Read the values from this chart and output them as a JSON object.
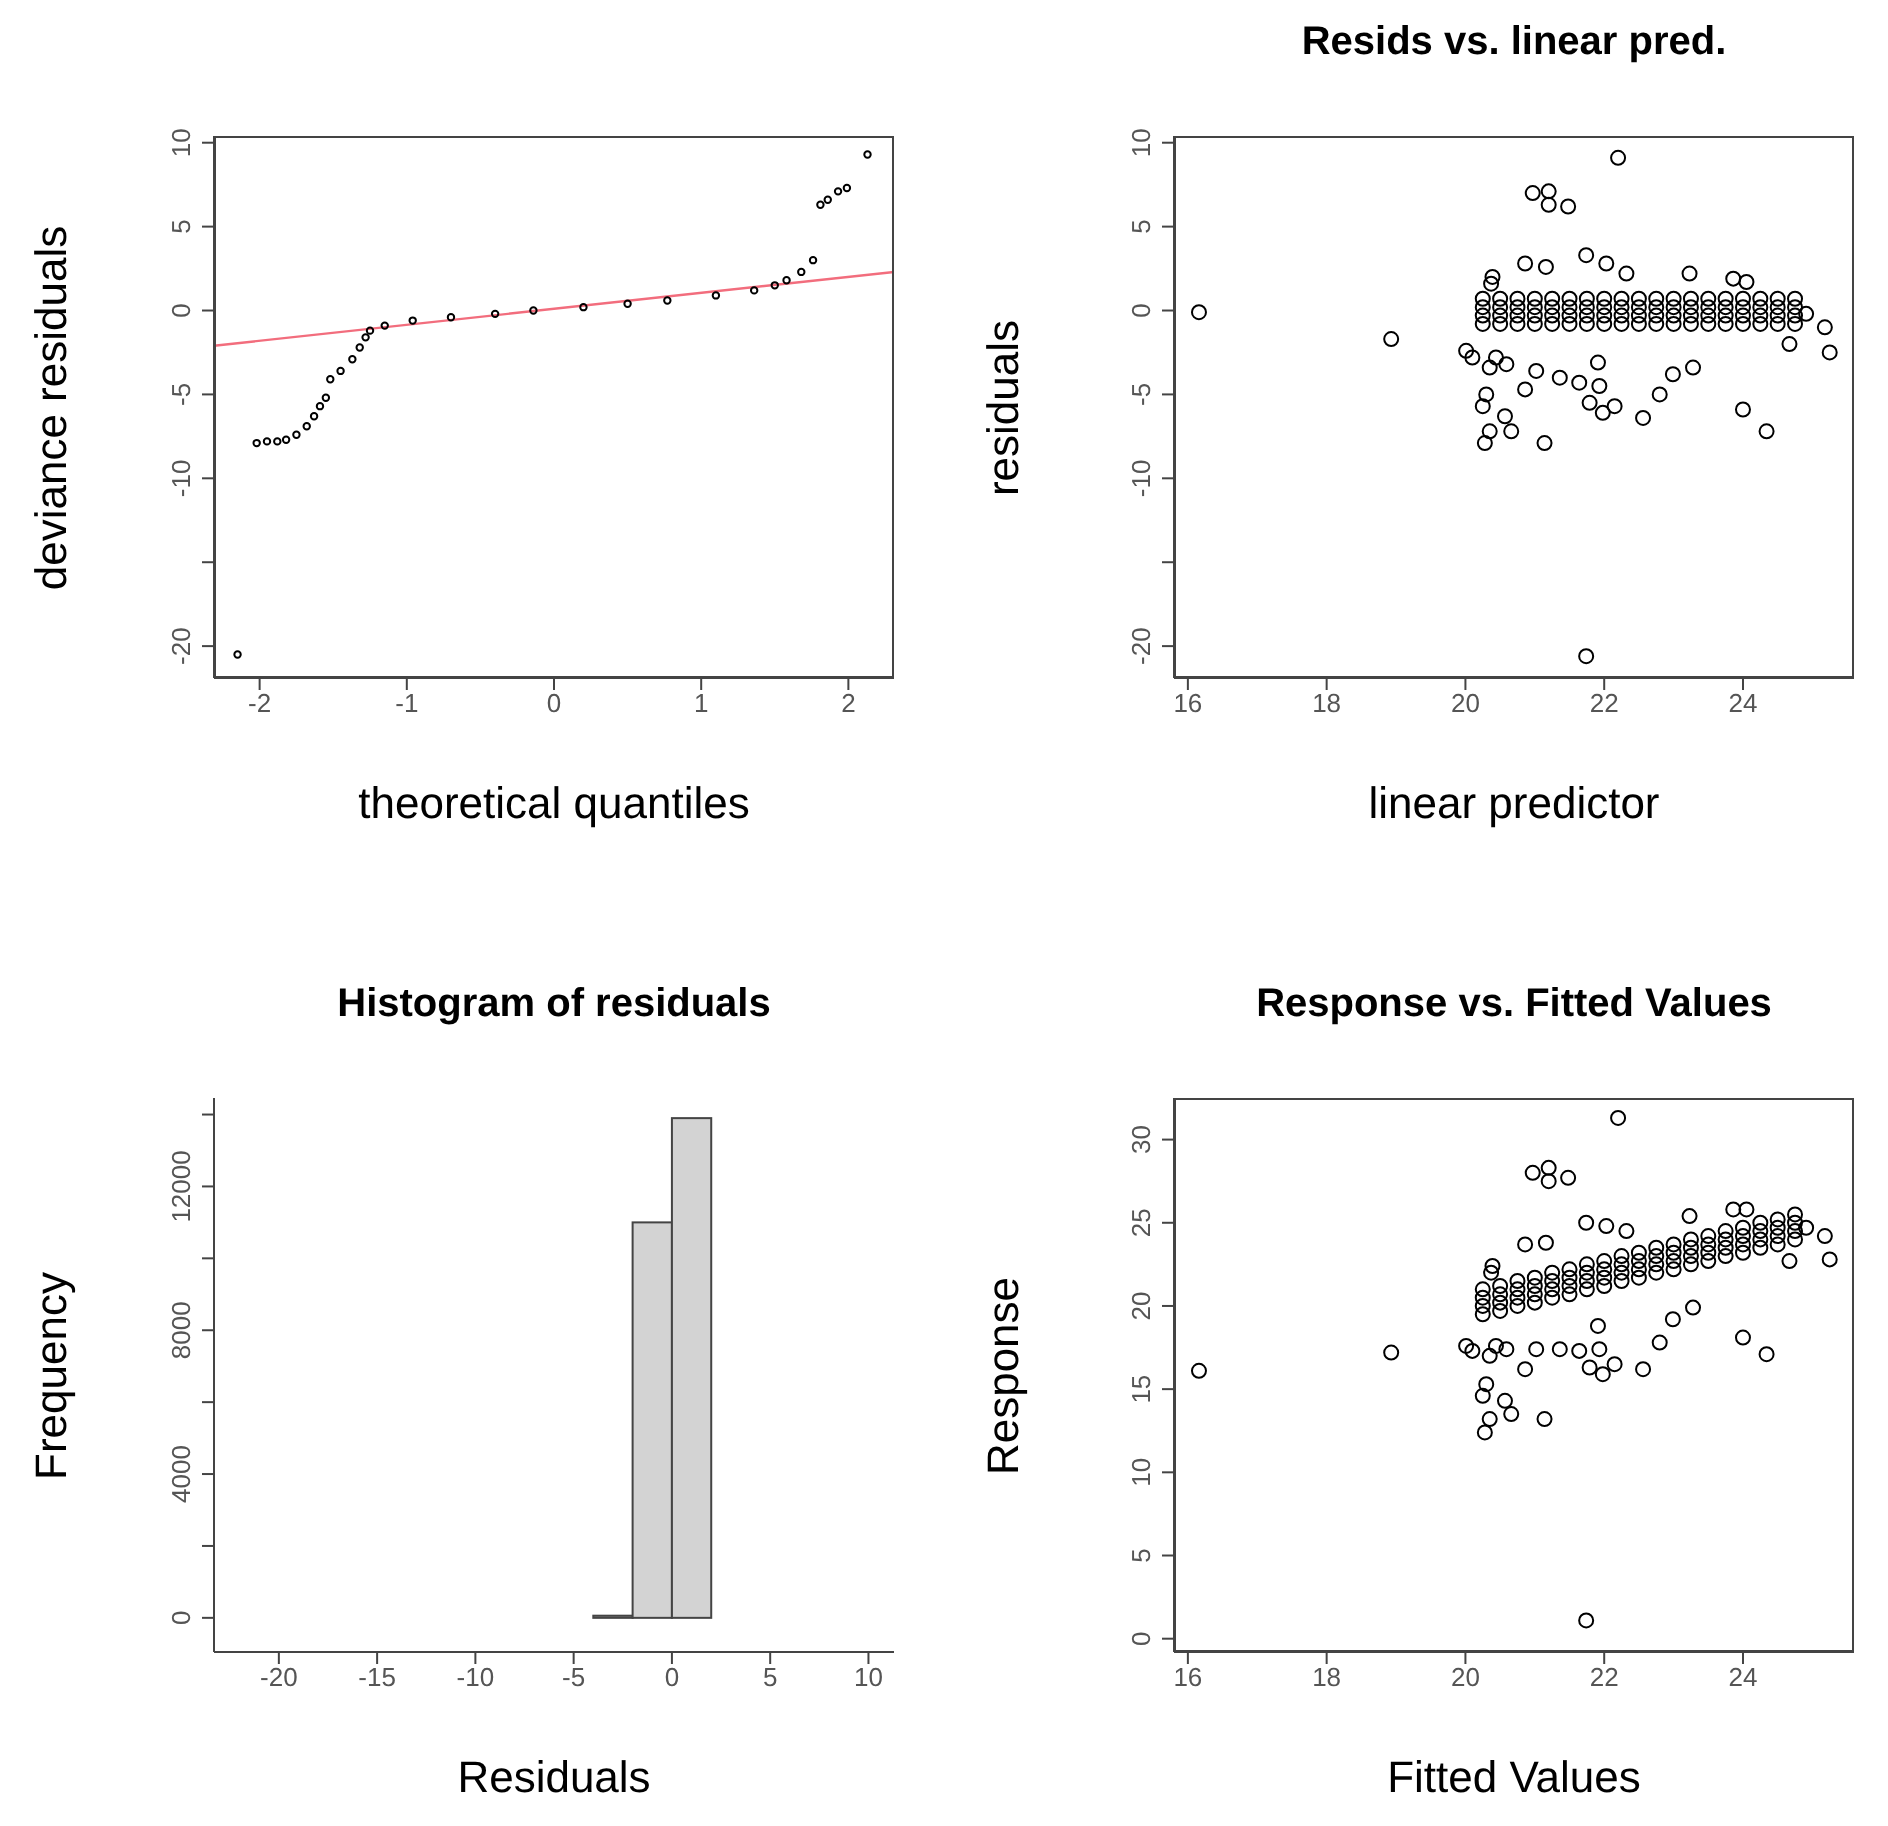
{
  "chart_data": [
    {
      "type": "scatter",
      "xlabel": "theoretical quantiles",
      "ylabel": "deviance residuals",
      "xlim": [
        -2.31,
        2.31
      ],
      "xticks": [
        -2,
        -1,
        0,
        1,
        2
      ],
      "ylim": [
        -21.9,
        10.4
      ],
      "yticks": [
        -20,
        {
          "value": -15,
          "label": null
        },
        -10,
        -5,
        0,
        5,
        10
      ],
      "series": [
        {
          "type": "scatter",
          "color": "#000000",
          "marker": "circle",
          "x": [
            -2.15,
            -2.02,
            -1.95,
            -1.88,
            -1.82,
            -1.75,
            -1.68,
            -1.63,
            -1.59,
            -1.55,
            -1.52,
            -1.45,
            -1.37,
            -1.32,
            -1.28,
            -1.25,
            -1.15,
            -0.96,
            -0.7,
            -0.4,
            -0.14,
            0.2,
            0.5,
            0.77,
            1.1,
            1.36,
            1.5,
            1.58,
            1.68,
            1.76,
            1.81,
            1.86,
            1.93,
            1.99,
            2.13
          ],
          "values": [
            -20.5,
            -7.9,
            -7.8,
            -7.8,
            -7.7,
            -7.4,
            -6.9,
            -6.3,
            -5.7,
            -5.2,
            -4.1,
            -3.6,
            -2.9,
            -2.2,
            -1.6,
            -1.2,
            -0.9,
            -0.6,
            -0.4,
            -0.2,
            0.0,
            0.2,
            0.4,
            0.6,
            0.9,
            1.2,
            1.5,
            1.8,
            2.3,
            3.0,
            6.3,
            6.6,
            7.1,
            7.3,
            9.3
          ]
        },
        {
          "type": "line",
          "color": "#f26d7d",
          "marker": "none",
          "x": [
            -2.31,
            2.31
          ],
          "values": [
            -2.1,
            2.3
          ]
        }
      ]
    },
    {
      "type": "scatter",
      "title": "Resids vs. linear pred.",
      "xlabel": "linear predictor",
      "ylabel": "residuals",
      "xlim": [
        15.8,
        25.6
      ],
      "xticks": [
        16,
        18,
        20,
        22,
        24
      ],
      "ylim": [
        -21.9,
        10.4
      ],
      "yticks": [
        -20,
        {
          "value": -15,
          "label": null
        },
        -10,
        -5,
        0,
        5,
        10
      ],
      "series": [
        {
          "type": "scatter",
          "color": "#000000",
          "marker": "circle",
          "x": [
            16.16,
            18.93,
            22.2,
            20.97,
            21.2,
            21.2,
            21.48,
            21.74,
            20.37,
            20.86,
            21.74,
            20.28,
            20.35,
            20.66,
            20.57,
            21.14,
            20.86,
            20.25,
            20.3,
            20.35,
            20.01,
            20.1,
            20.44,
            20.59,
            21.02,
            21.36,
            21.64,
            21.79,
            21.98,
            22.15,
            21.91,
            21.93,
            22.56,
            22.8,
            22.99,
            23.28,
            24.0,
            24.34,
            25.25,
            25.18,
            24.91,
            24.67,
            22.03,
            22.32,
            23.23,
            23.86,
            24.05,
            20.39,
            21.16,
            20.25,
            20.5,
            20.75,
            21,
            21.25,
            21.5,
            21.75,
            22,
            22.25,
            22.5,
            22.75,
            23,
            23.25,
            23.5,
            23.75,
            24,
            24.25,
            24.5,
            24.75,
            20.25,
            20.5,
            20.75,
            21,
            21.25,
            21.5,
            21.75,
            22,
            22.25,
            22.5,
            22.75,
            23,
            23.25,
            23.5,
            23.75,
            24,
            24.25,
            24.5,
            24.75,
            20.25,
            20.5,
            20.75,
            21,
            21.25,
            21.5,
            21.75,
            22,
            22.25,
            22.5,
            22.75,
            23,
            23.25,
            23.5,
            23.75,
            24,
            24.25,
            24.5,
            24.75,
            20.25,
            20.5,
            20.75,
            21,
            21.25,
            21.5,
            21.75,
            22,
            22.25,
            22.5,
            22.75,
            23,
            23.25,
            23.5,
            23.75,
            24,
            24.25,
            24.5,
            24.75
          ],
          "values": [
            -0.1,
            -1.7,
            9.1,
            7.0,
            7.1,
            6.3,
            6.2,
            -20.6,
            1.6,
            2.8,
            3.3,
            -7.9,
            -7.2,
            -7.2,
            -6.3,
            -7.9,
            -4.7,
            -5.7,
            -5.0,
            -3.4,
            -2.4,
            -2.8,
            -2.8,
            -3.2,
            -3.6,
            -4.0,
            -4.3,
            -5.5,
            -6.1,
            -5.7,
            -3.1,
            -4.5,
            -6.4,
            -5.0,
            -3.8,
            -3.4,
            -5.9,
            -7.2,
            -2.5,
            -1.0,
            -0.2,
            -2.0,
            2.8,
            2.2,
            2.2,
            1.9,
            1.7,
            2.0,
            2.6,
            -0.8,
            -0.8,
            -0.8,
            -0.8,
            -0.8,
            -0.8,
            -0.8,
            -0.8,
            -0.8,
            -0.8,
            -0.8,
            -0.8,
            -0.8,
            -0.8,
            -0.8,
            -0.8,
            -0.8,
            -0.8,
            -0.8,
            -0.3,
            -0.3,
            -0.3,
            -0.3,
            -0.3,
            -0.3,
            -0.3,
            -0.3,
            -0.3,
            -0.3,
            -0.3,
            -0.3,
            -0.3,
            -0.3,
            -0.3,
            -0.3,
            -0.3,
            -0.3,
            -0.3,
            0.2,
            0.2,
            0.2,
            0.2,
            0.2,
            0.2,
            0.2,
            0.2,
            0.2,
            0.2,
            0.2,
            0.2,
            0.2,
            0.2,
            0.2,
            0.2,
            0.2,
            0.2,
            0.2,
            0.7,
            0.7,
            0.7,
            0.7,
            0.7,
            0.7,
            0.7,
            0.7,
            0.7,
            0.7,
            0.7,
            0.7,
            0.7,
            0.7,
            0.7,
            0.7,
            0.7,
            0.7,
            0.7
          ]
        }
      ]
    },
    {
      "type": "histogram",
      "title": "Histogram of residuals",
      "xlabel": "Residuals",
      "ylabel": "Frequency",
      "color": "#d3d3d3",
      "xlim": [
        -23.3,
        11.3
      ],
      "xticks": [
        -20,
        -15,
        -10,
        -5,
        0,
        5,
        10
      ],
      "ylim": [
        -950,
        14460
      ],
      "yticks": [
        0,
        {
          "value": 2000,
          "label": null
        },
        4000,
        {
          "value": 6000,
          "label": null
        },
        8000,
        {
          "value": 10000,
          "label": null
        },
        12000,
        {
          "value": 14000,
          "label": null
        }
      ],
      "bins": [
        -22,
        -20,
        -18,
        -16,
        -14,
        -12,
        -10,
        -8,
        -6,
        -4,
        -2,
        0,
        2,
        4,
        6,
        8,
        10
      ],
      "values": [
        0,
        0,
        0,
        0,
        0,
        0,
        0,
        0,
        0,
        60,
        11000,
        13900,
        0,
        0,
        0,
        0
      ]
    },
    {
      "type": "scatter",
      "title": "Response vs. Fitted Values",
      "xlabel": "Fitted Values",
      "ylabel": "Response",
      "xlim": [
        15.8,
        25.6
      ],
      "xticks": [
        16,
        18,
        20,
        22,
        24
      ],
      "ylim": [
        -0.8,
        32.5
      ],
      "yticks": [
        0,
        5,
        10,
        15,
        20,
        25,
        30
      ],
      "series": [
        {
          "type": "scatter",
          "color": "#000000",
          "marker": "circle",
          "x": [
            16.16,
            18.93,
            22.2,
            20.97,
            21.2,
            21.2,
            21.48,
            21.74,
            20.37,
            20.86,
            21.74,
            20.28,
            20.35,
            20.66,
            20.57,
            21.14,
            20.86,
            20.25,
            20.3,
            20.35,
            20.01,
            20.1,
            20.44,
            20.59,
            21.02,
            21.36,
            21.64,
            21.79,
            21.98,
            22.15,
            21.91,
            21.93,
            22.56,
            22.8,
            22.99,
            23.28,
            24.0,
            24.34,
            25.25,
            25.18,
            24.91,
            24.67,
            22.03,
            22.32,
            23.23,
            23.86,
            24.05,
            20.39,
            21.16,
            20.25,
            20.5,
            20.75,
            21,
            21.25,
            21.5,
            21.75,
            22,
            22.25,
            22.5,
            22.75,
            23,
            23.25,
            23.5,
            23.75,
            24,
            24.25,
            24.5,
            24.75,
            20.25,
            20.5,
            20.75,
            21,
            21.25,
            21.5,
            21.75,
            22,
            22.25,
            22.5,
            22.75,
            23,
            23.25,
            23.5,
            23.75,
            24,
            24.25,
            24.5,
            24.75,
            20.25,
            20.5,
            20.75,
            21,
            21.25,
            21.5,
            21.75,
            22,
            22.25,
            22.5,
            22.75,
            23,
            23.25,
            23.5,
            23.75,
            24,
            24.25,
            24.5,
            24.75,
            20.25,
            20.5,
            20.75,
            21,
            21.25,
            21.5,
            21.75,
            22,
            22.25,
            22.5,
            22.75,
            23,
            23.25,
            23.5,
            23.75,
            24,
            24.25,
            24.5,
            24.75
          ],
          "values": [
            16.1,
            17.2,
            31.3,
            28.0,
            28.3,
            27.5,
            27.7,
            1.1,
            22.0,
            23.7,
            25.0,
            12.4,
            13.2,
            13.5,
            14.3,
            13.2,
            16.2,
            14.6,
            15.3,
            17.0,
            17.6,
            17.3,
            17.6,
            17.4,
            17.4,
            17.4,
            17.3,
            16.3,
            15.9,
            16.5,
            18.8,
            17.4,
            16.2,
            17.8,
            19.2,
            19.9,
            18.1,
            17.1,
            22.8,
            24.2,
            24.7,
            22.7,
            24.8,
            24.5,
            25.4,
            25.8,
            25.8,
            22.4,
            23.8,
            19.5,
            19.7,
            20.0,
            20.2,
            20.5,
            20.7,
            21.0,
            21.2,
            21.5,
            21.7,
            22.0,
            22.2,
            22.5,
            22.7,
            23.0,
            23.2,
            23.5,
            23.7,
            24.0,
            20.0,
            20.2,
            20.5,
            20.7,
            21.0,
            21.2,
            21.5,
            21.7,
            22.0,
            22.2,
            22.5,
            22.7,
            23.0,
            23.2,
            23.5,
            23.7,
            24.0,
            24.2,
            24.5,
            20.5,
            20.7,
            21.0,
            21.2,
            21.5,
            21.7,
            22.0,
            22.2,
            22.5,
            22.7,
            23.0,
            23.2,
            23.5,
            23.7,
            24.0,
            24.2,
            24.5,
            24.7,
            25.0,
            21.0,
            21.2,
            21.5,
            21.7,
            22.0,
            22.2,
            22.5,
            22.7,
            23.0,
            23.2,
            23.5,
            23.7,
            24.0,
            24.2,
            24.5,
            24.7,
            25.0,
            25.2,
            25.5
          ]
        }
      ]
    }
  ]
}
